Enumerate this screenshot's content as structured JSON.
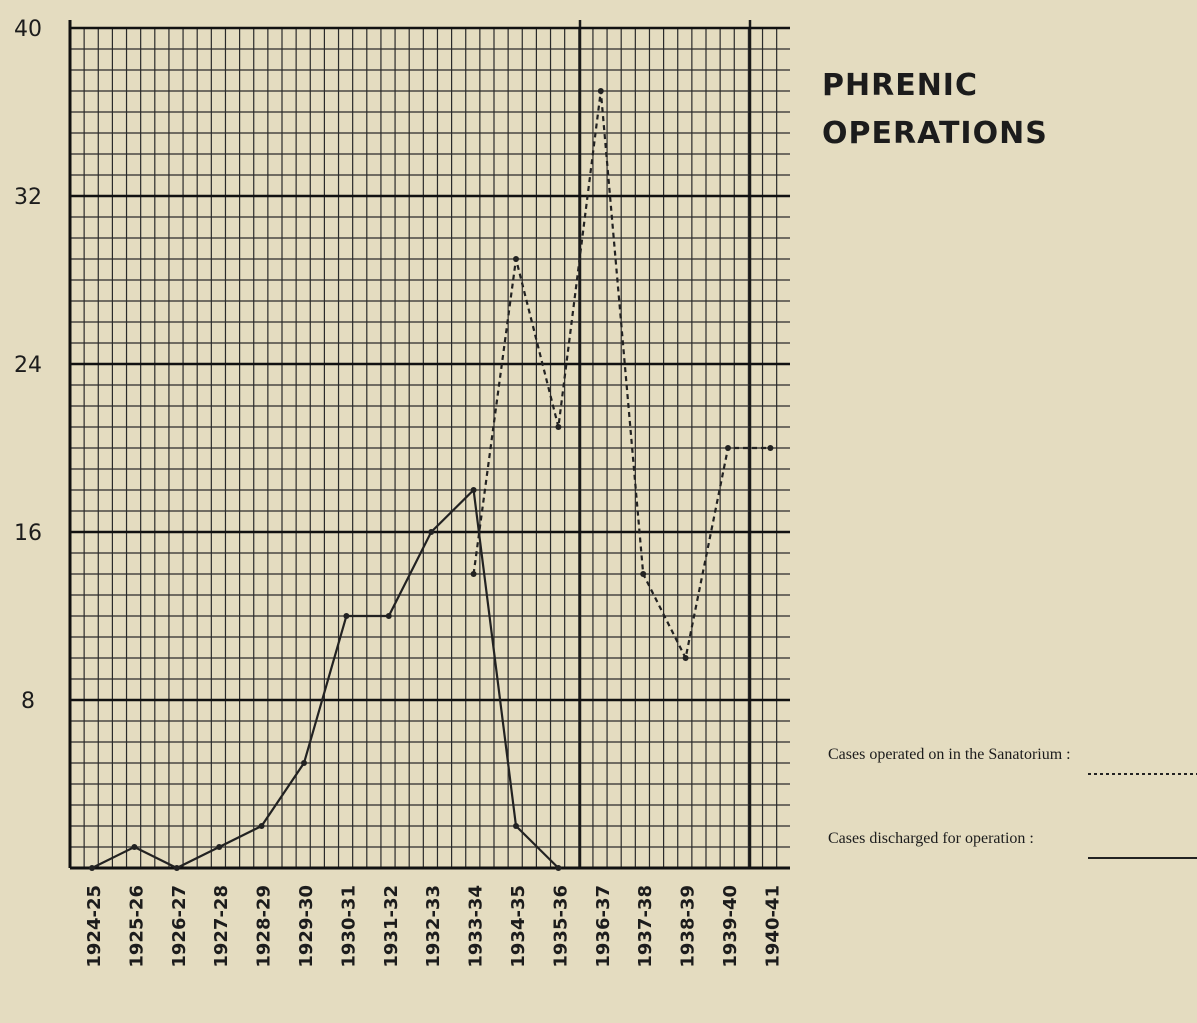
{
  "chart_data": {
    "type": "line",
    "title": "PHRENIC OPERATIONS",
    "categories": [
      "1924-25",
      "1925-26",
      "1926-27",
      "1927-28",
      "1928-29",
      "1929-30",
      "1930-31",
      "1931-32",
      "1932-33",
      "1933-34",
      "1934-35",
      "1935-36",
      "1936-37",
      "1937-38",
      "1938-39",
      "1939-40",
      "1940-41"
    ],
    "series": [
      {
        "name": "Cases operated on in the Sanatorium :",
        "color": "#222222",
        "line_style": "dotted",
        "values": [
          null,
          null,
          null,
          null,
          null,
          null,
          null,
          null,
          null,
          14,
          29,
          21,
          37,
          14,
          10,
          20,
          20
        ]
      },
      {
        "name": "Cases discharged for operation :",
        "color": "#222222",
        "line_style": "solid",
        "values": [
          0,
          1,
          0,
          1,
          2,
          5,
          12,
          12,
          16,
          18,
          2,
          0,
          null,
          null,
          null,
          null,
          null
        ]
      }
    ],
    "ylim": [
      0,
      40
    ],
    "yticks": [
      8,
      16,
      24,
      32,
      40
    ],
    "grid": true
  }
}
